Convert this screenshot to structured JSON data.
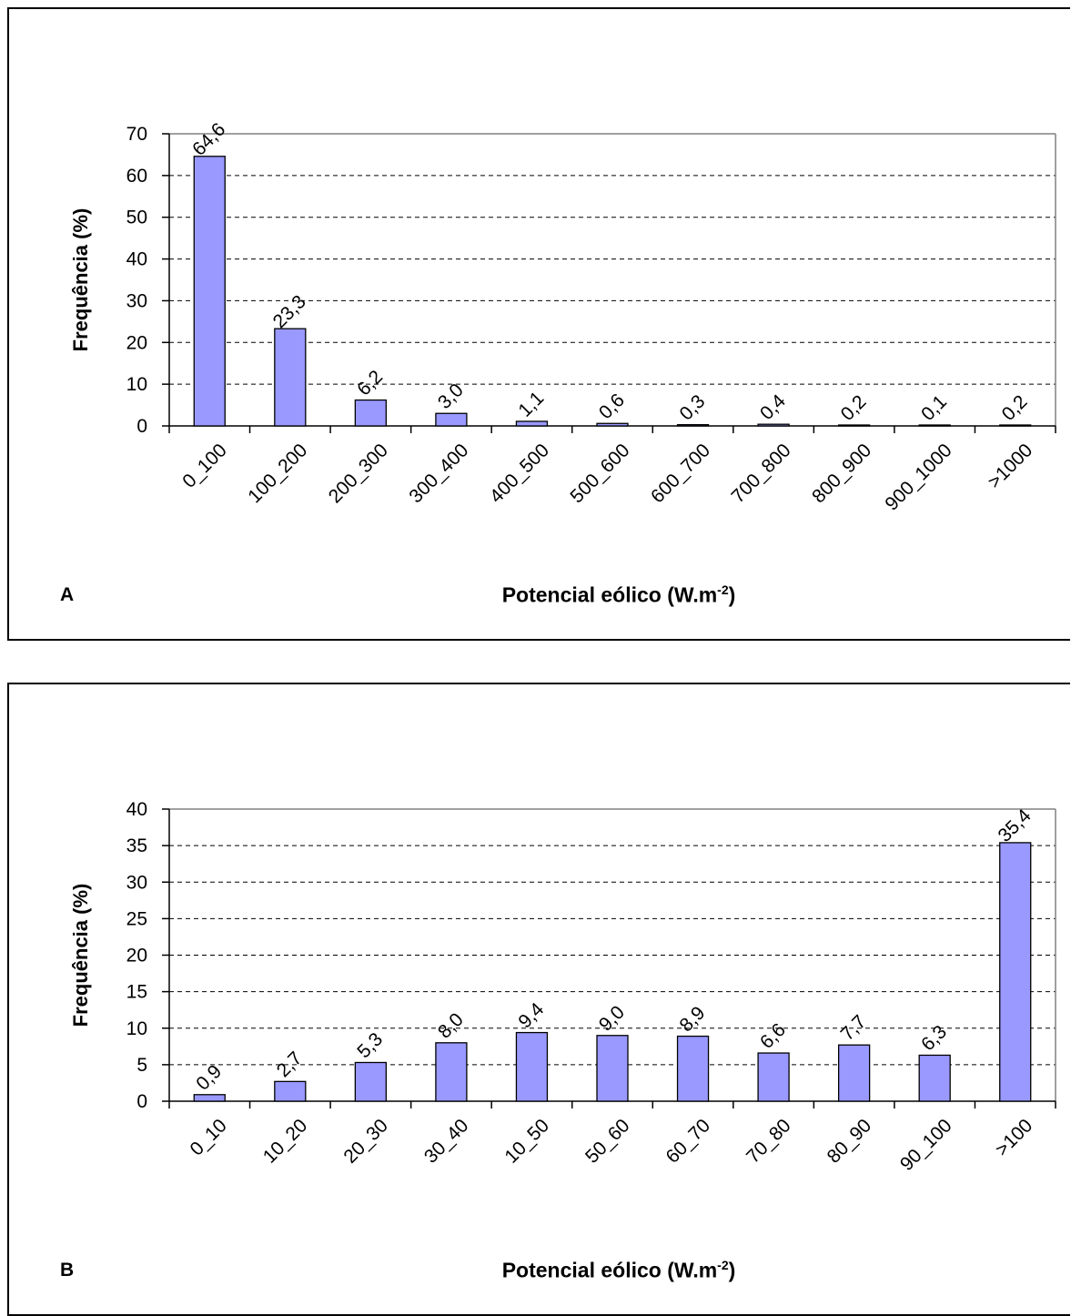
{
  "chart_data": [
    {
      "type": "bar",
      "panel_label": "A",
      "categories": [
        "0_100",
        "100_200",
        "200_300",
        "300_400",
        "400_500",
        "500_600",
        "600_700",
        "700_800",
        "800_900",
        "900_1000",
        ">1000"
      ],
      "values": [
        64.6,
        23.3,
        6.2,
        3.0,
        1.1,
        0.6,
        0.3,
        0.4,
        0.2,
        0.1,
        0.2
      ],
      "value_labels": [
        "64,6",
        "23,3",
        "6,2",
        "3,0",
        "1,1",
        "0,6",
        "0,3",
        "0,4",
        "0,2",
        "0,1",
        "0,2"
      ],
      "ylabel": "Frequência (%)",
      "xlabel_main": "Potencial eólico (W.m",
      "xlabel_sup": "-2",
      "xlabel_end": ")",
      "ylim": [
        0,
        70
      ],
      "yticks": [
        0,
        10,
        20,
        30,
        40,
        50,
        60,
        70
      ],
      "grid": "dashed horizontal",
      "bar_color": "#9999ff"
    },
    {
      "type": "bar",
      "panel_label": "B",
      "categories": [
        "0_10",
        "10_20",
        "20_30",
        "30_40",
        "10_50",
        "50_60",
        "60_70",
        "70_80",
        "80_90",
        "90_100",
        ">100"
      ],
      "values": [
        0.9,
        2.7,
        5.3,
        8.0,
        9.4,
        9.0,
        8.9,
        6.6,
        7.7,
        6.3,
        35.4
      ],
      "value_labels": [
        "0,9",
        "2,7",
        "5,3",
        "8,0",
        "9,4",
        "9,0",
        "8,9",
        "6,6",
        "7,7",
        "6,3",
        "35,4"
      ],
      "ylabel": "Frequência (%)",
      "xlabel_main": "Potencial eólico (W.m",
      "xlabel_sup": "-2",
      "xlabel_end": ")",
      "ylim": [
        0,
        40
      ],
      "yticks": [
        0,
        5,
        10,
        15,
        20,
        25,
        30,
        35,
        40
      ],
      "grid": "dashed horizontal",
      "bar_color": "#9999ff"
    }
  ]
}
